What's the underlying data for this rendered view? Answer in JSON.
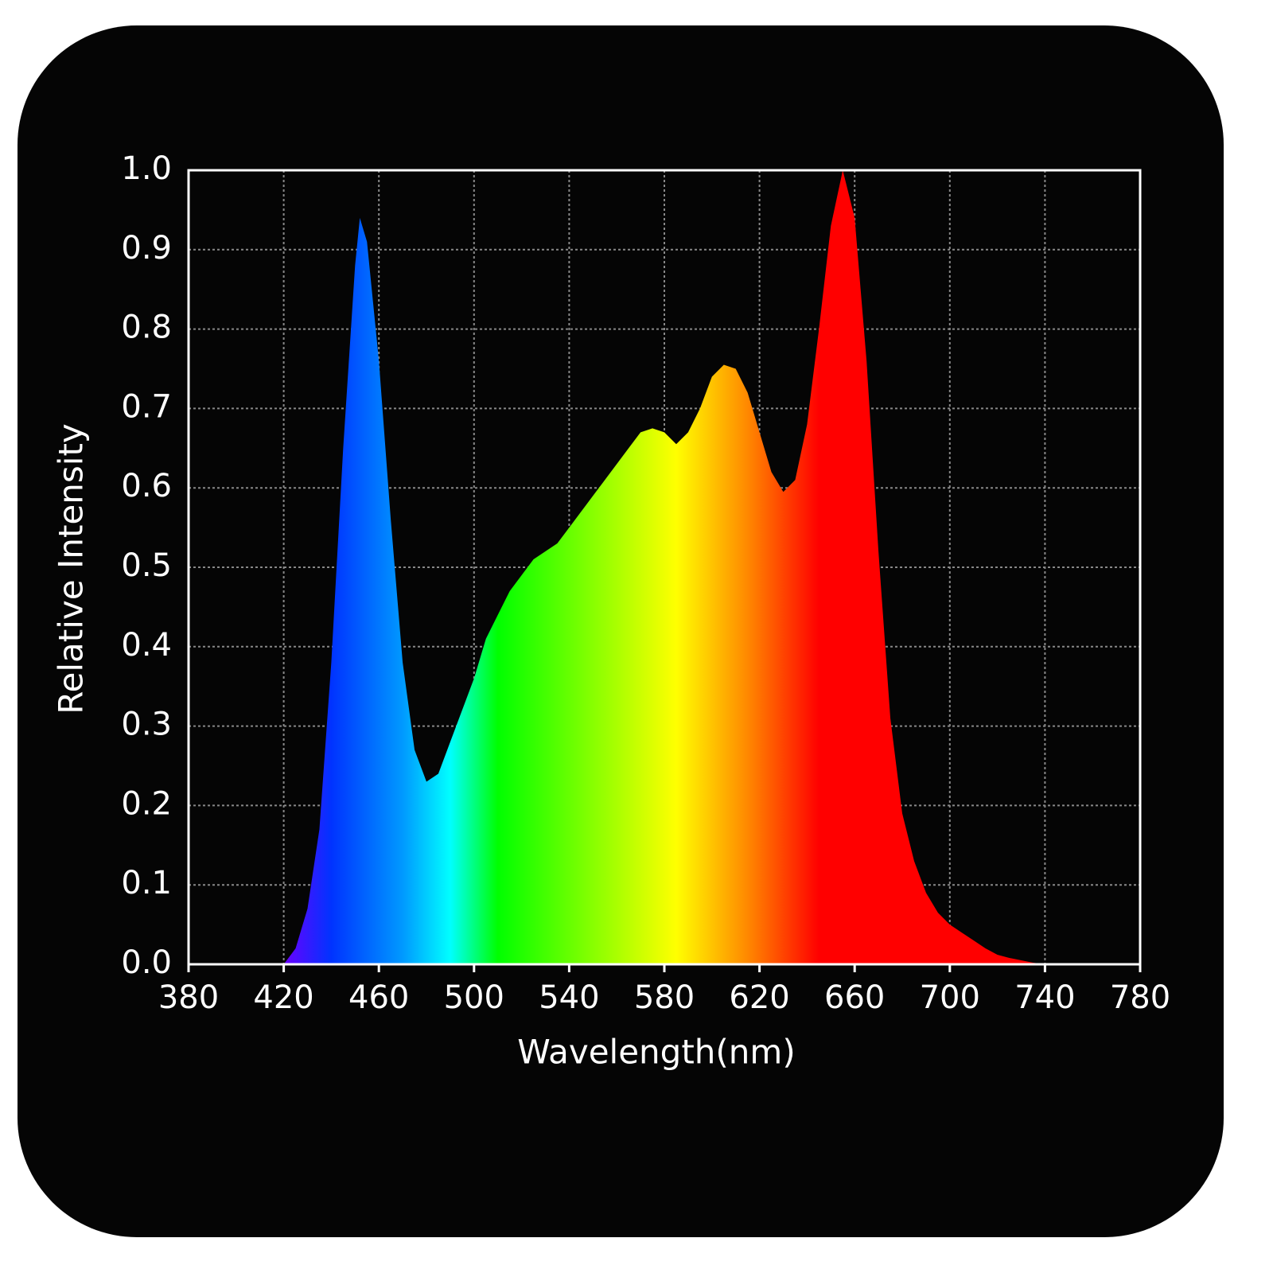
{
  "chart_data": {
    "type": "area",
    "xlabel": "Wavelength(nm)",
    "ylabel": "Relative Intensity",
    "x": [
      420,
      425,
      430,
      435,
      440,
      445,
      450,
      452,
      455,
      460,
      465,
      470,
      475,
      480,
      485,
      490,
      495,
      500,
      505,
      510,
      515,
      520,
      525,
      530,
      535,
      540,
      545,
      550,
      555,
      560,
      565,
      570,
      575,
      580,
      585,
      590,
      595,
      600,
      605,
      610,
      615,
      620,
      625,
      630,
      635,
      640,
      645,
      650,
      655,
      660,
      665,
      670,
      675,
      680,
      685,
      690,
      695,
      700,
      705,
      710,
      715,
      720,
      725,
      730,
      735,
      740
    ],
    "values": [
      0,
      0.02,
      0.07,
      0.17,
      0.38,
      0.65,
      0.88,
      0.94,
      0.91,
      0.76,
      0.56,
      0.38,
      0.27,
      0.23,
      0.24,
      0.28,
      0.32,
      0.36,
      0.41,
      0.44,
      0.47,
      0.49,
      0.51,
      0.52,
      0.53,
      0.55,
      0.57,
      0.59,
      0.61,
      0.63,
      0.65,
      0.67,
      0.675,
      0.67,
      0.655,
      0.67,
      0.7,
      0.74,
      0.755,
      0.75,
      0.72,
      0.67,
      0.62,
      0.595,
      0.61,
      0.68,
      0.8,
      0.93,
      1.0,
      0.94,
      0.76,
      0.52,
      0.31,
      0.19,
      0.13,
      0.09,
      0.065,
      0.05,
      0.04,
      0.03,
      0.02,
      0.012,
      0.008,
      0.005,
      0.002,
      0
    ],
    "fill_gradient": [
      {
        "x": 420,
        "color": "#6a00ff"
      },
      {
        "x": 440,
        "color": "#0033ff"
      },
      {
        "x": 470,
        "color": "#0099ff"
      },
      {
        "x": 490,
        "color": "#00ffff"
      },
      {
        "x": 510,
        "color": "#00ff00"
      },
      {
        "x": 550,
        "color": "#88ff00"
      },
      {
        "x": 585,
        "color": "#ffff00"
      },
      {
        "x": 615,
        "color": "#ff8800"
      },
      {
        "x": 645,
        "color": "#ff0000"
      },
      {
        "x": 740,
        "color": "#ff0000"
      }
    ],
    "xlim": [
      380,
      780
    ],
    "xticks": [
      380,
      420,
      460,
      500,
      540,
      580,
      620,
      660,
      700,
      740,
      780
    ],
    "ylim": [
      0,
      1
    ],
    "yticks": [
      {
        "value": 0,
        "label": "0.0"
      },
      0.1,
      0.2,
      0.3,
      0.4,
      0.5,
      0.6,
      0.7,
      0.8,
      0.9,
      {
        "value": 1,
        "label": "1.0"
      }
    ],
    "grid": true
  }
}
